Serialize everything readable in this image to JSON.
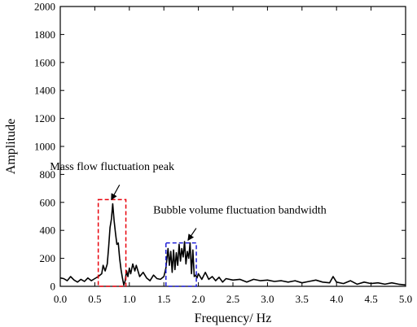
{
  "chart_data": {
    "type": "line",
    "xlabel": "Frequency/ Hz",
    "ylabel": "Amplitude",
    "xlim": [
      0.0,
      5.0
    ],
    "ylim": [
      0,
      2000
    ],
    "x_ticks": [
      "0.0",
      "0.5",
      "1.0",
      "1.5",
      "2.0",
      "2.5",
      "3.0",
      "3.5",
      "4.0",
      "4.5",
      "5.0"
    ],
    "y_ticks": [
      "0",
      "200",
      "400",
      "600",
      "800",
      "1000",
      "1200",
      "1400",
      "1600",
      "1800",
      "2000"
    ],
    "grid": false,
    "series": [
      {
        "color": "#000000",
        "x": [
          0.0,
          0.05,
          0.1,
          0.15,
          0.2,
          0.25,
          0.3,
          0.35,
          0.4,
          0.45,
          0.5,
          0.55,
          0.6,
          0.62,
          0.65,
          0.68,
          0.7,
          0.72,
          0.74,
          0.76,
          0.78,
          0.8,
          0.82,
          0.84,
          0.86,
          0.88,
          0.9,
          0.92,
          0.94,
          0.96,
          0.98,
          1.0,
          1.02,
          1.05,
          1.08,
          1.1,
          1.15,
          1.2,
          1.25,
          1.3,
          1.35,
          1.4,
          1.45,
          1.5,
          1.53,
          1.56,
          1.58,
          1.6,
          1.62,
          1.64,
          1.66,
          1.68,
          1.7,
          1.72,
          1.74,
          1.76,
          1.78,
          1.8,
          1.82,
          1.84,
          1.86,
          1.88,
          1.9,
          1.92,
          1.94,
          1.96,
          1.98,
          2.0,
          2.05,
          2.1,
          2.15,
          2.2,
          2.25,
          2.3,
          2.35,
          2.4,
          2.5,
          2.6,
          2.7,
          2.8,
          2.9,
          3.0,
          3.1,
          3.2,
          3.3,
          3.4,
          3.5,
          3.6,
          3.7,
          3.8,
          3.9,
          3.95,
          4.0,
          4.1,
          4.2,
          4.3,
          4.4,
          4.5,
          4.6,
          4.7,
          4.8,
          4.9,
          5.0
        ],
        "y": [
          60,
          55,
          40,
          70,
          45,
          30,
          50,
          35,
          60,
          40,
          55,
          70,
          90,
          150,
          110,
          160,
          280,
          420,
          480,
          590,
          470,
          380,
          300,
          310,
          200,
          120,
          60,
          10,
          40,
          110,
          70,
          130,
          90,
          160,
          110,
          150,
          70,
          100,
          60,
          40,
          80,
          55,
          50,
          70,
          130,
          270,
          150,
          250,
          100,
          260,
          120,
          240,
          150,
          300,
          180,
          270,
          210,
          320,
          160,
          250,
          200,
          310,
          90,
          260,
          70,
          80,
          60,
          90,
          50,
          100,
          50,
          70,
          40,
          65,
          30,
          55,
          45,
          50,
          30,
          50,
          40,
          45,
          35,
          40,
          30,
          40,
          25,
          35,
          45,
          30,
          25,
          70,
          30,
          20,
          40,
          15,
          30,
          20,
          25,
          15,
          25,
          15,
          10
        ]
      }
    ],
    "annotations": [
      {
        "text": "Mass flow fluctuation peak",
        "box_x": [
          0.55,
          0.95
        ],
        "box_y": [
          0,
          620
        ],
        "box_color": "#e8000b",
        "arrow_to": [
          0.74,
          620
        ],
        "label_pos": [
          0.75,
          830
        ]
      },
      {
        "text": "Bubble volume fluctuation bandwidth",
        "box_x": [
          1.53,
          1.97
        ],
        "box_y": [
          0,
          310
        ],
        "box_color": "#1f1fd6",
        "arrow_to": [
          1.85,
          330
        ],
        "label_pos": [
          2.6,
          520
        ]
      }
    ]
  }
}
